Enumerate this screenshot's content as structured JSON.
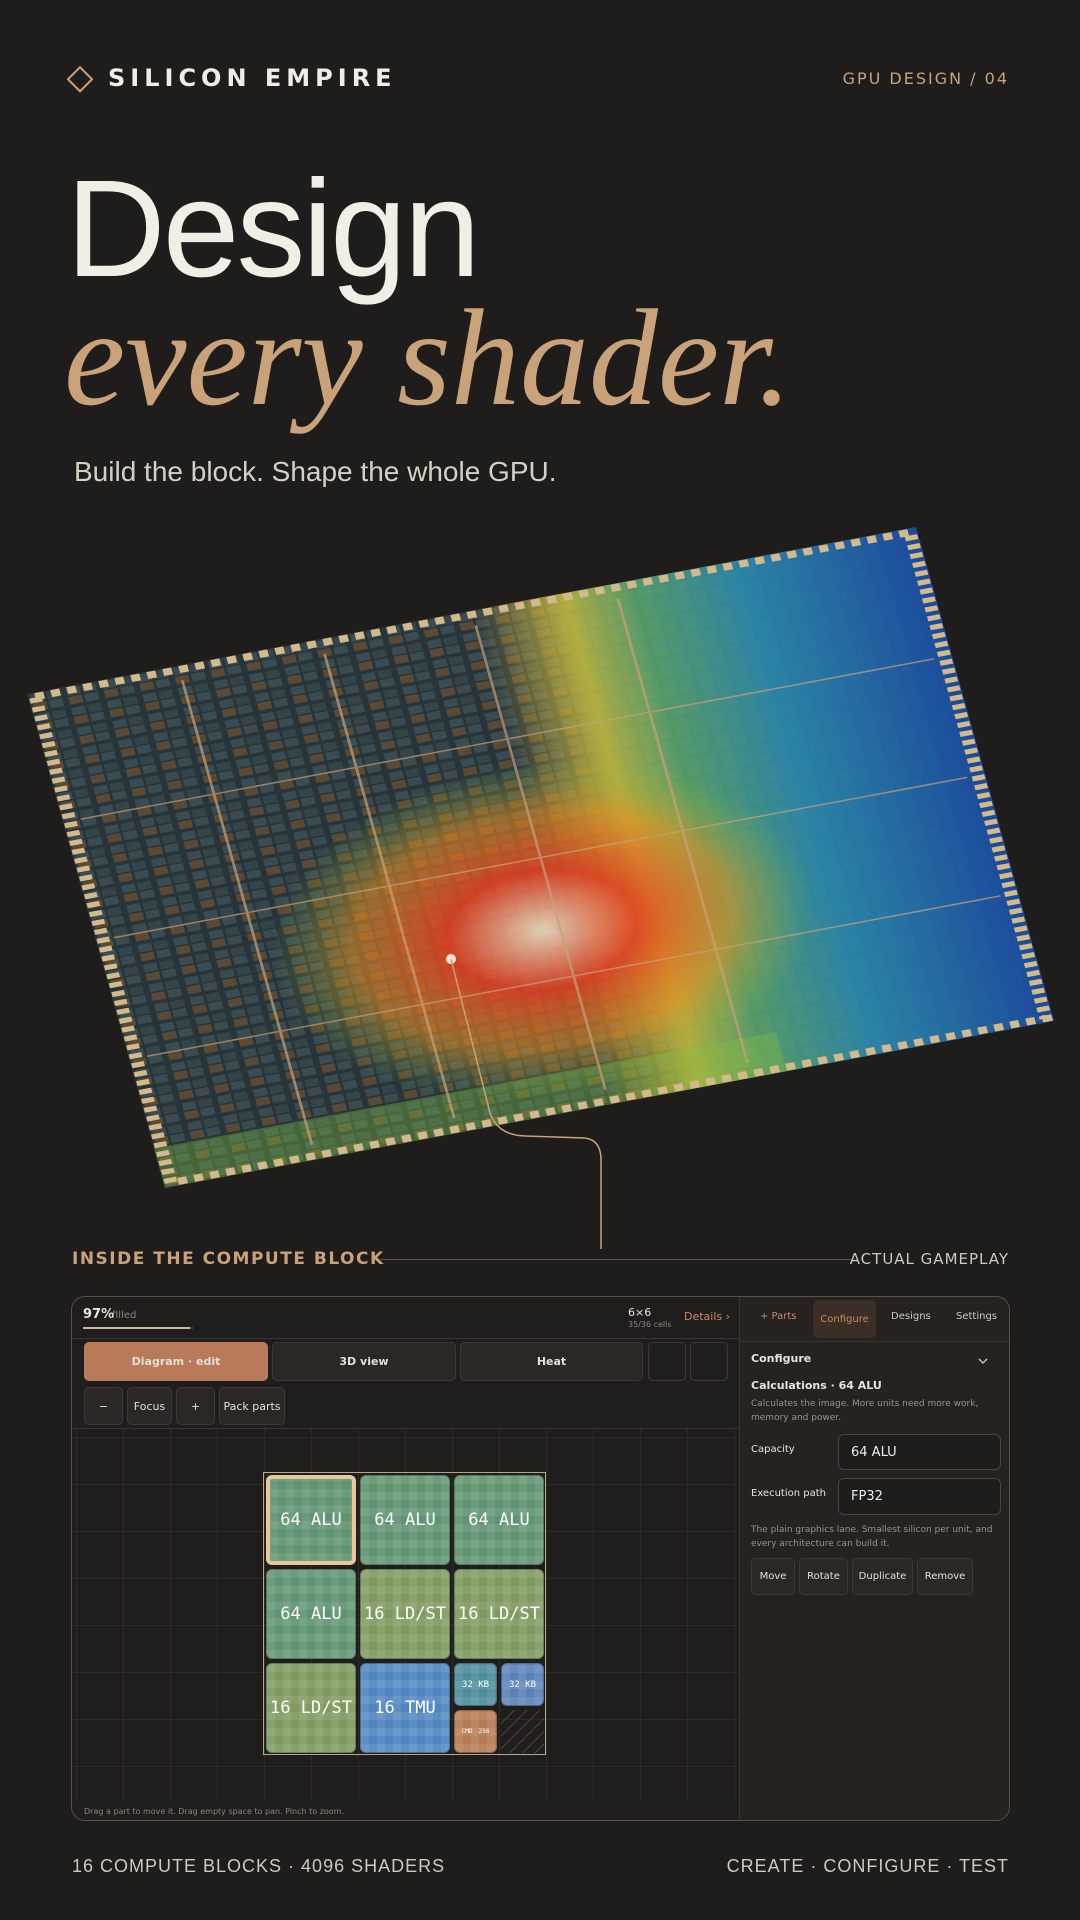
{
  "header": {
    "brand": "SILICON EMPIRE",
    "tag": "GPU DESIGN / 04"
  },
  "hero": {
    "line1": "Design",
    "line2": "every shader.",
    "subtitle": "Build the block. Shape the whole GPU."
  },
  "section": {
    "title": "INSIDE THE COMPUTE BLOCK",
    "note": "ACTUAL GAMEPLAY"
  },
  "editor": {
    "fill": "97%",
    "fill_label": "filled",
    "size": "6×6",
    "cells": "35/36 cells",
    "details": "Details ›",
    "views": [
      "Diagram · edit",
      "3D view",
      "Heat"
    ],
    "tools": [
      "−",
      "Focus",
      "+",
      "Pack parts"
    ],
    "parts": [
      {
        "label": "64 ALU"
      },
      {
        "label": "64 ALU"
      },
      {
        "label": "64 ALU"
      },
      {
        "label": "64 ALU"
      },
      {
        "label": "16 LD/ST"
      },
      {
        "label": "16 LD/ST"
      },
      {
        "label": "16 LD/ST"
      },
      {
        "label": "16 TMU"
      },
      {
        "label": "32 KB"
      },
      {
        "label": "32 KB"
      },
      {
        "label": "CMD",
        "sub": "256"
      }
    ],
    "hint": "Drag a part to move it. Drag empty space to pan. Pinch to zoom."
  },
  "sidebar": {
    "tabs": [
      "+ Parts",
      "Configure",
      "Designs",
      "Settings"
    ],
    "heading": "Configure",
    "part_title": "Calculations · 64 ALU",
    "description": "Calculates the image. More units need more work, memory and power.",
    "fields": [
      {
        "label": "Capacity",
        "value": "64 ALU"
      },
      {
        "label": "Execution path",
        "value": "FP32"
      }
    ],
    "note": "The plain graphics lane. Smallest silicon per unit, and every architecture can build it.",
    "actions": [
      "Move",
      "Rotate",
      "Duplicate",
      "Remove"
    ]
  },
  "footer": {
    "left": "16 COMPUTE BLOCKS · 4096 SHADERS",
    "right": "CREATE · CONFIGURE · TEST"
  }
}
